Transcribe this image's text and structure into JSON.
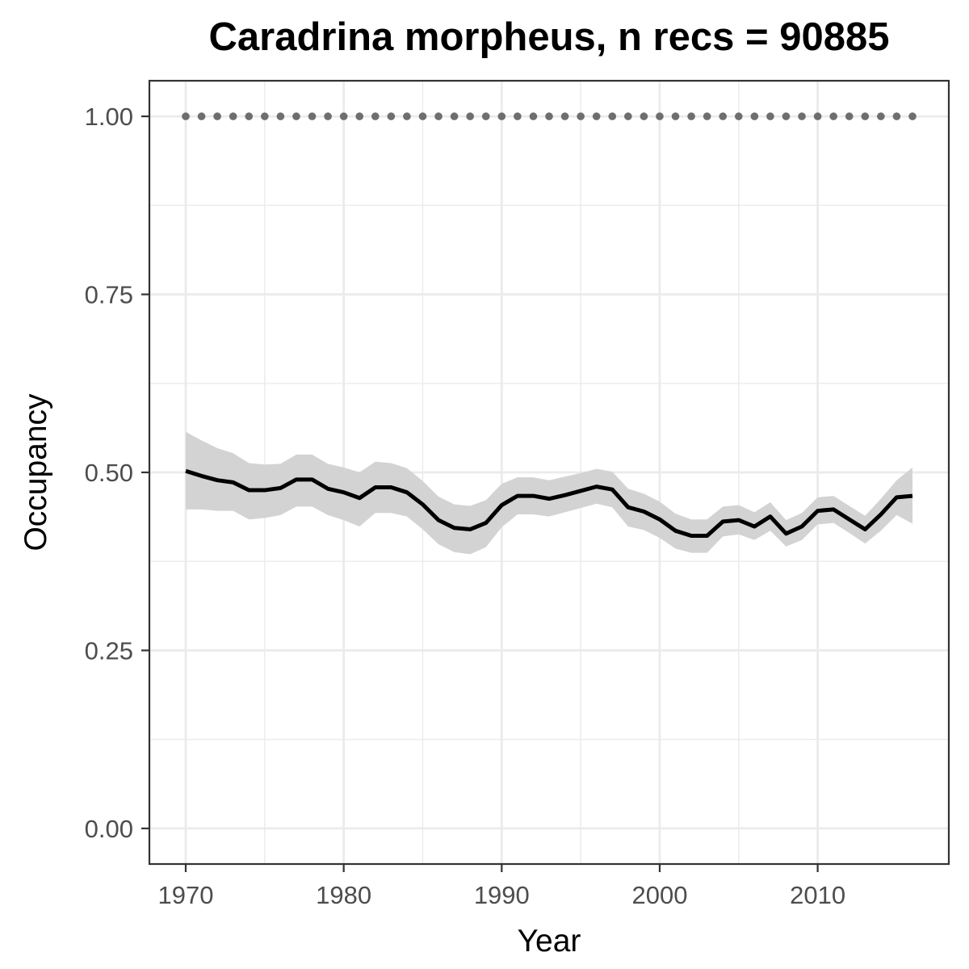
{
  "chart_data": {
    "type": "line",
    "title": "Caradrina morpheus, n recs = 90885",
    "xlabel": "Year",
    "ylabel": "Occupancy",
    "xlim": [
      1967.7,
      2018.3
    ],
    "ylim": [
      -0.05,
      1.05
    ],
    "x_ticks": [
      1970,
      1980,
      1990,
      2000,
      2010
    ],
    "y_ticks": [
      0.0,
      0.25,
      0.5,
      0.75,
      1.0
    ],
    "y_tick_labels": [
      "0.00",
      "0.25",
      "0.50",
      "0.75",
      "1.00"
    ],
    "grid": true,
    "colors": {
      "line": "#000000",
      "ribbon": "#d3d3d3",
      "reference_points": "#6e6e6e",
      "grid": "#ebebeb"
    },
    "x": [
      1970,
      1971,
      1972,
      1973,
      1974,
      1975,
      1976,
      1977,
      1978,
      1979,
      1980,
      1981,
      1982,
      1983,
      1984,
      1985,
      1986,
      1987,
      1988,
      1989,
      1990,
      1991,
      1992,
      1993,
      1994,
      1995,
      1996,
      1997,
      1998,
      1999,
      2000,
      2001,
      2002,
      2003,
      2004,
      2005,
      2006,
      2007,
      2008,
      2009,
      2010,
      2011,
      2012,
      2013,
      2014,
      2015,
      2016
    ],
    "series": [
      {
        "values": [
          0.502,
          0.495,
          0.489,
          0.486,
          0.475,
          0.475,
          0.478,
          0.49,
          0.49,
          0.477,
          0.472,
          0.464,
          0.479,
          0.479,
          0.472,
          0.455,
          0.433,
          0.422,
          0.42,
          0.429,
          0.454,
          0.467,
          0.467,
          0.463,
          0.468,
          0.474,
          0.48,
          0.476,
          0.451,
          0.445,
          0.434,
          0.418,
          0.411,
          0.411,
          0.431,
          0.433,
          0.424,
          0.438,
          0.414,
          0.424,
          0.446,
          0.448,
          0.434,
          0.42,
          0.441,
          0.465,
          0.467
        ],
        "lower": [
          0.448,
          0.448,
          0.446,
          0.446,
          0.434,
          0.436,
          0.44,
          0.452,
          0.452,
          0.44,
          0.433,
          0.424,
          0.443,
          0.443,
          0.438,
          0.42,
          0.399,
          0.388,
          0.385,
          0.395,
          0.423,
          0.441,
          0.441,
          0.438,
          0.444,
          0.45,
          0.456,
          0.451,
          0.424,
          0.419,
          0.408,
          0.393,
          0.387,
          0.387,
          0.41,
          0.413,
          0.405,
          0.418,
          0.396,
          0.405,
          0.427,
          0.429,
          0.415,
          0.4,
          0.418,
          0.44,
          0.428
        ],
        "upper": [
          0.557,
          0.545,
          0.534,
          0.527,
          0.513,
          0.511,
          0.512,
          0.525,
          0.525,
          0.512,
          0.507,
          0.5,
          0.515,
          0.513,
          0.506,
          0.488,
          0.466,
          0.455,
          0.453,
          0.461,
          0.484,
          0.493,
          0.493,
          0.489,
          0.494,
          0.499,
          0.505,
          0.501,
          0.477,
          0.47,
          0.459,
          0.442,
          0.434,
          0.434,
          0.452,
          0.454,
          0.444,
          0.458,
          0.433,
          0.443,
          0.465,
          0.467,
          0.453,
          0.439,
          0.463,
          0.489,
          0.507
        ]
      }
    ],
    "reference_value": 1.0
  }
}
